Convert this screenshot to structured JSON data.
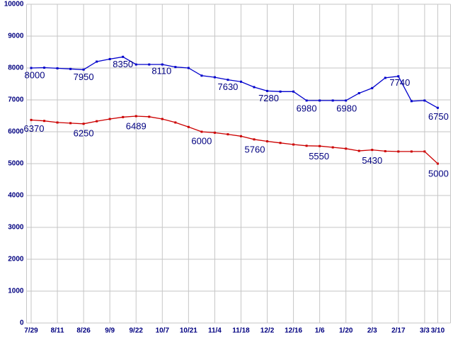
{
  "chart_data": {
    "type": "line",
    "title": "",
    "xlabel": "",
    "ylabel": "",
    "grid": true,
    "legend": "none",
    "y_axis": {
      "min": 0,
      "max": 10000,
      "step": 1000,
      "tick_labels": [
        "10000",
        "9000",
        "8000",
        "7000",
        "6000",
        "5000",
        "4000",
        "3000",
        "2000",
        "1000",
        "0"
      ]
    },
    "x_axis": {
      "tick_labels": [
        "7/29",
        "8/11",
        "8/26",
        "9/9",
        "9/22",
        "10/7",
        "10/21",
        "11/4",
        "11/18",
        "12/2",
        "12/16",
        "1/6",
        "1/20",
        "2/3",
        "2/17",
        "3/3",
        "3/10"
      ],
      "tick_point_indices": [
        0,
        2,
        4,
        6,
        8,
        10,
        12,
        14,
        16,
        18,
        20,
        22,
        24,
        26,
        28,
        30,
        31
      ]
    },
    "colors": {
      "grid": "#c6c6c6",
      "axis_text": "#000080",
      "annotation_text": "#000080",
      "background": "#ffffff"
    },
    "series": [
      {
        "name": "upper-blue-series",
        "color": "#0000cc",
        "values": [
          8000,
          8010,
          7990,
          7970,
          7950,
          8200,
          8280,
          8350,
          8110,
          8110,
          8110,
          8030,
          8000,
          7760,
          7710,
          7630,
          7570,
          7400,
          7280,
          7260,
          7260,
          6980,
          6980,
          6980,
          6980,
          7210,
          7370,
          7690,
          7740,
          6960,
          6980,
          6750
        ],
        "labels": [
          {
            "point": 0,
            "text": "8000",
            "dx": 5,
            "dy": 10
          },
          {
            "point": 4,
            "text": "7950",
            "dx": 0,
            "dy": 10
          },
          {
            "point": 7,
            "text": "8350",
            "dx": 0,
            "dy": 10
          },
          {
            "point": 10,
            "text": "8110",
            "dx": -1,
            "dy": 9
          },
          {
            "point": 15,
            "text": "7630",
            "dx": 0,
            "dy": 10
          },
          {
            "point": 18,
            "text": "7280",
            "dx": 2,
            "dy": 10
          },
          {
            "point": 21,
            "text": "6980",
            "dx": 0,
            "dy": 11
          },
          {
            "point": 24,
            "text": "6980",
            "dx": 1,
            "dy": 11
          },
          {
            "point": 28,
            "text": "7740",
            "dx": 2,
            "dy": 9
          },
          {
            "point": 31,
            "text": "6750",
            "dx": 1,
            "dy": 12
          }
        ]
      },
      {
        "name": "lower-red-series",
        "color": "#cc0000",
        "values": [
          6370,
          6340,
          6290,
          6270,
          6250,
          6330,
          6400,
          6460,
          6489,
          6470,
          6400,
          6290,
          6150,
          6000,
          5970,
          5920,
          5860,
          5760,
          5700,
          5650,
          5600,
          5560,
          5550,
          5510,
          5470,
          5400,
          5430,
          5390,
          5380,
          5380,
          5380,
          5000
        ],
        "labels": [
          {
            "point": 0,
            "text": "6370",
            "dx": 4,
            "dy": 12
          },
          {
            "point": 4,
            "text": "6250",
            "dx": 0,
            "dy": 13
          },
          {
            "point": 8,
            "text": "6489",
            "dx": 0,
            "dy": 14
          },
          {
            "point": 13,
            "text": "6000",
            "dx": 0,
            "dy": 13
          },
          {
            "point": 17,
            "text": "5760",
            "dx": 1,
            "dy": 14
          },
          {
            "point": 22,
            "text": "5550",
            "dx": -1,
            "dy": 14
          },
          {
            "point": 26,
            "text": "5430",
            "dx": 0,
            "dy": 15
          },
          {
            "point": 31,
            "text": "5000",
            "dx": 1,
            "dy": 14
          }
        ]
      }
    ]
  }
}
